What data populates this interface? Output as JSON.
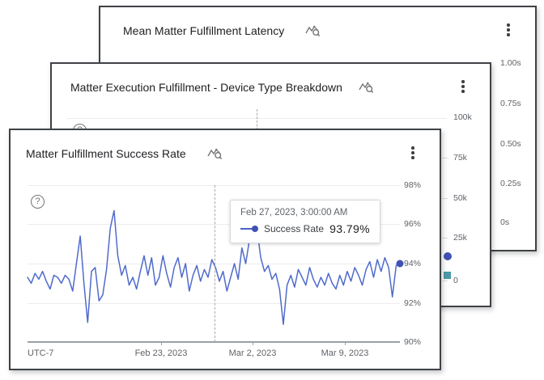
{
  "cards": {
    "back": {
      "title": "Mean Matter Fulfillment Latency",
      "y_axis_labels": [
        "1.00s",
        "0.75s",
        "0.50s",
        "0.25s",
        "0s"
      ]
    },
    "middle": {
      "title": "Matter Execution Fulfillment - Device Type Breakdown",
      "y_axis_labels": [
        "100k",
        "75k",
        "50k",
        "25k",
        "0"
      ],
      "help_icon_glyph": "?"
    },
    "front": {
      "title": "Matter Fulfillment Success Rate",
      "y_axis_labels": [
        "98%",
        "96%",
        "94%",
        "92%",
        "90%"
      ],
      "x_axis": {
        "timezone_label": "UTC-7",
        "tick_labels": [
          "Feb 23, 2023",
          "Mar 2, 2023",
          "Mar 9, 2023"
        ]
      },
      "tooltip": {
        "timestamp": "Feb 27, 2023, 3:00:00 AM",
        "series_label": "Success Rate",
        "value": "93.79%"
      },
      "help_icon_glyph": "?"
    }
  },
  "colors": {
    "line_series": "#4f6bcb",
    "endpoint_dot": "#3f51b5",
    "middle_marker_circle": "#3f51b5",
    "middle_marker_square": "#4d9aa5",
    "card_border": "#3f4246",
    "gridline": "#ececec",
    "axis": "#9aa0a6",
    "muted_text": "#5f6368"
  },
  "chart_data": [
    {
      "type": "line",
      "title": "Matter Fulfillment Success Rate",
      "timezone": "UTC-7",
      "x_tick_labels": [
        "Feb 23, 2023",
        "Mar 2, 2023",
        "Mar 9, 2023"
      ],
      "x_range_note": "approx Feb 13, 2023 to Mar 13, 2023",
      "ylim": [
        90,
        98
      ],
      "y_tick_labels": [
        "90%",
        "92%",
        "94%",
        "96%",
        "98%"
      ],
      "grid": "horizontal",
      "hover_point": {
        "timestamp": "Feb 27, 2023, 3:00:00 AM",
        "series": "Success Rate",
        "value": 93.79
      },
      "series": [
        {
          "name": "Success Rate",
          "unit": "%",
          "values": [
            93.3,
            93.0,
            93.5,
            93.2,
            93.6,
            93.1,
            92.7,
            93.4,
            93.3,
            93.0,
            93.4,
            93.2,
            92.6,
            94.0,
            95.4,
            93.0,
            91.0,
            93.6,
            93.8,
            92.1,
            92.4,
            93.7,
            95.8,
            96.7,
            94.4,
            93.4,
            93.9,
            92.9,
            93.3,
            92.7,
            93.6,
            94.4,
            93.4,
            94.3,
            92.9,
            93.3,
            94.4,
            93.5,
            92.8,
            93.8,
            94.3,
            93.3,
            94.0,
            92.6,
            93.4,
            93.9,
            93.1,
            93.7,
            93.3,
            94.2,
            93.79,
            93.1,
            93.6,
            92.6,
            93.3,
            94.0,
            93.2,
            94.8,
            94.0,
            95.2,
            96.3,
            95.8,
            94.3,
            93.6,
            93.9,
            93.2,
            93.5,
            92.7,
            90.9,
            92.9,
            93.4,
            92.8,
            93.7,
            93.3,
            92.9,
            93.8,
            93.2,
            92.8,
            93.3,
            92.9,
            93.5,
            93.0,
            92.7,
            93.4,
            92.9,
            93.6,
            93.1,
            93.8,
            93.4,
            92.9,
            93.7,
            94.1,
            93.3,
            94.2,
            93.6,
            94.3,
            93.8,
            92.3,
            93.9,
            94.0
          ]
        }
      ]
    },
    {
      "type": "line",
      "title": "Matter Execution Fulfillment - Device Type Breakdown",
      "ylim": [
        0,
        100000
      ],
      "y_tick_labels": [
        "0",
        "25k",
        "50k",
        "75k",
        "100k"
      ],
      "occluded": true,
      "visible_markers": [
        {
          "shape": "circle",
          "color": "#3f51b5"
        },
        {
          "shape": "square",
          "color": "#4d9aa5"
        }
      ]
    },
    {
      "type": "line",
      "title": "Mean Matter Fulfillment Latency",
      "y_tick_labels": [
        "0s",
        "0.25s",
        "0.50s",
        "0.75s",
        "1.00s"
      ],
      "occluded": true
    }
  ]
}
